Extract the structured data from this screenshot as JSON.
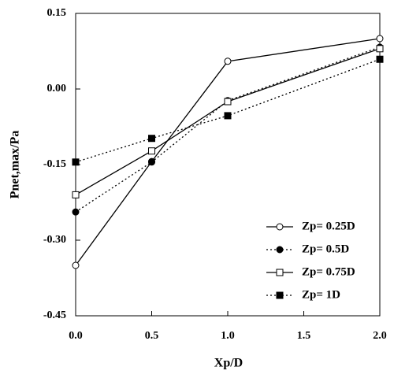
{
  "chart_data": {
    "type": "line",
    "xlabel": "Xp/D",
    "ylabel": "Pnet,max/Pa",
    "xlim": [
      0,
      2
    ],
    "ylim": [
      -0.45,
      0.15
    ],
    "xticks": [
      {
        "value": 0,
        "label": "0.0"
      },
      {
        "value": 0.5,
        "label": "0.5"
      },
      {
        "value": 1,
        "label": "1.0"
      },
      {
        "value": 1.5,
        "label": "1.5"
      },
      {
        "value": 2,
        "label": "2.0"
      }
    ],
    "yticks": [
      {
        "value": -0.45,
        "label": "-0.45"
      },
      {
        "value": -0.3,
        "label": "-0.30"
      },
      {
        "value": -0.15,
        "label": "-0.15"
      },
      {
        "value": 0,
        "label": "0.00"
      },
      {
        "value": 0.15,
        "label": "0.15"
      }
    ],
    "legend": "lower right",
    "series": [
      {
        "name": "Zp= 0.25D",
        "color": "#000000",
        "line": "solid",
        "marker": "circle",
        "filled": false,
        "x": [
          0,
          0.5,
          1,
          2
        ],
        "values": [
          -0.35,
          -0.144,
          0.055,
          0.1
        ]
      },
      {
        "name": "Zp= 0.5D",
        "color": "#000000",
        "line": "dotted",
        "marker": "circle",
        "filled": true,
        "x": [
          0,
          0.5,
          1,
          2
        ],
        "values": [
          -0.244,
          -0.145,
          -0.023,
          0.083
        ]
      },
      {
        "name": "Zp= 0.75D",
        "color": "#000000",
        "line": "solid",
        "marker": "square",
        "filled": false,
        "x": [
          0,
          0.5,
          1,
          2
        ],
        "values": [
          -0.21,
          -0.123,
          -0.025,
          0.08
        ]
      },
      {
        "name": "Zp= 1D",
        "color": "#000000",
        "line": "dotted",
        "marker": "square",
        "filled": true,
        "x": [
          0,
          0.5,
          1,
          2
        ],
        "values": [
          -0.145,
          -0.098,
          -0.053,
          0.059
        ]
      }
    ]
  }
}
